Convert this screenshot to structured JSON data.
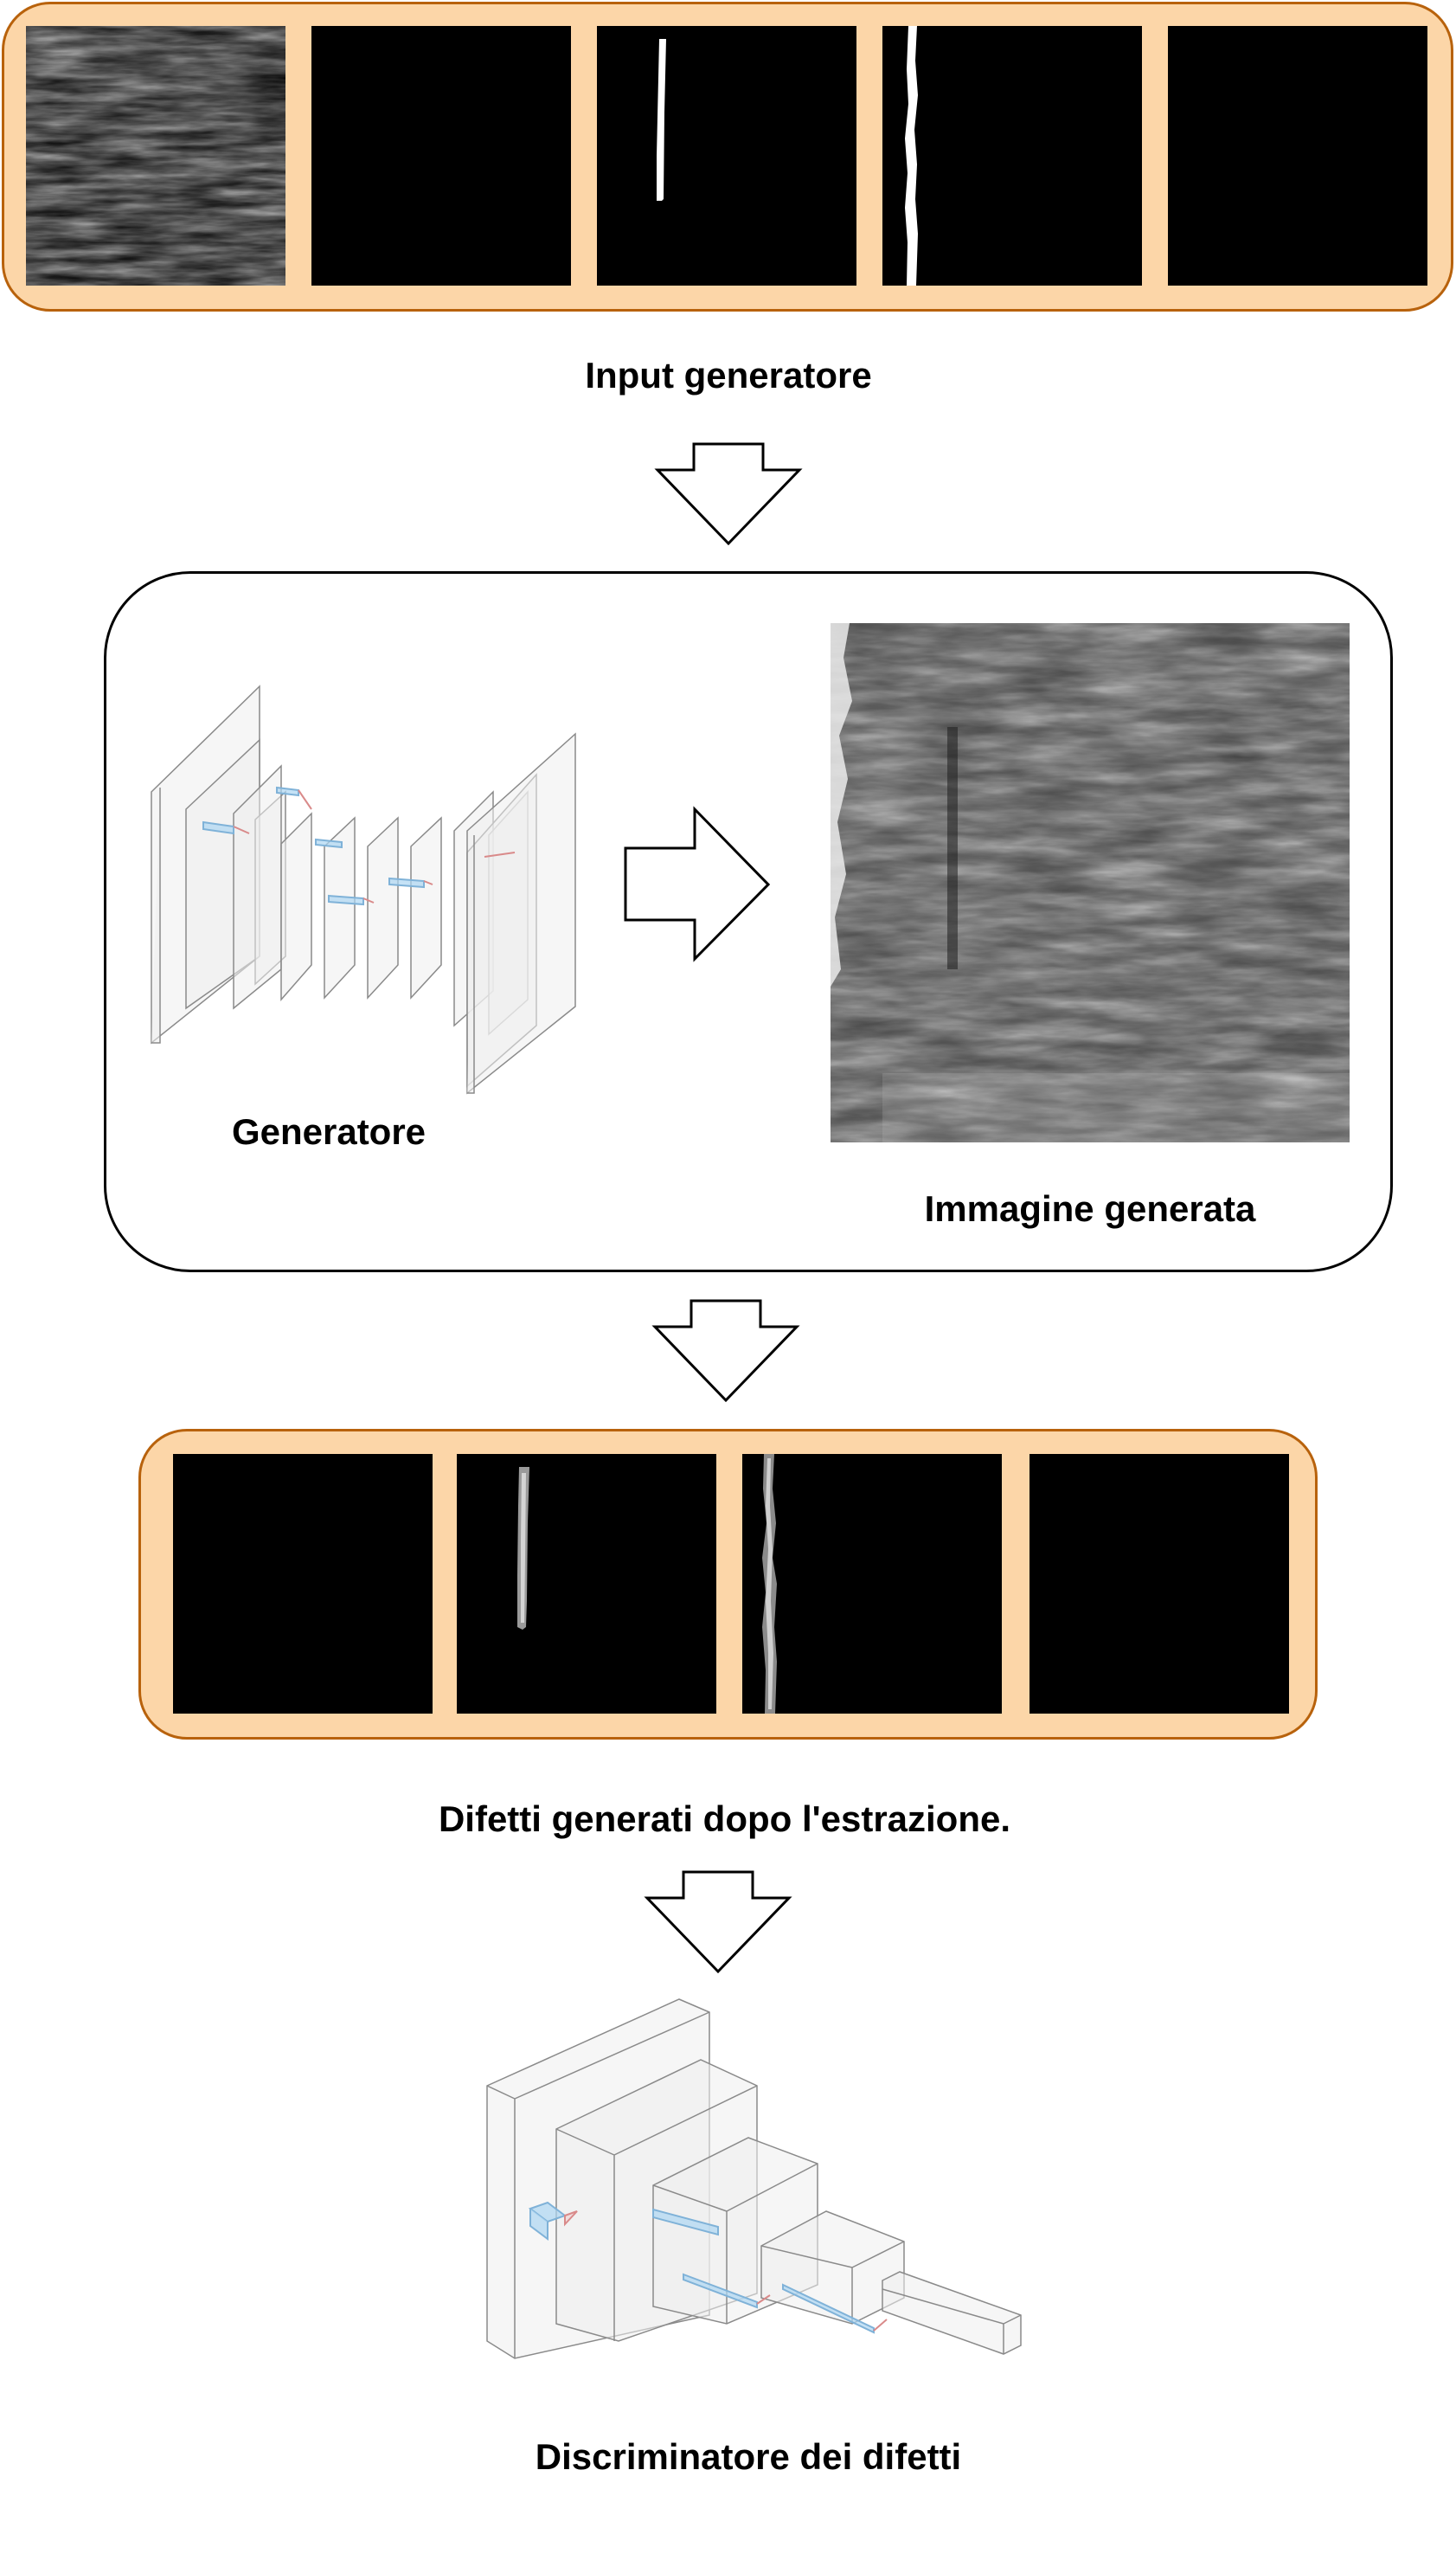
{
  "labels": {
    "input": "Input generatore",
    "generator": "Generatore",
    "generated_image": "Immagine generata",
    "extracted": "Difetti generati dopo l'estrazione.",
    "discriminator": "Discriminatore dei difetti"
  },
  "colors": {
    "panel_fill": "#fcd6a8",
    "panel_border": "#b8620c",
    "tile": "#000000",
    "arrow_stroke": "#000000"
  },
  "input_tiles": [
    {
      "kind": "texture"
    },
    {
      "kind": "blank"
    },
    {
      "kind": "straight-line-mask"
    },
    {
      "kind": "wavy-line-mask"
    },
    {
      "kind": "blank"
    }
  ],
  "output_tiles": [
    {
      "kind": "blank"
    },
    {
      "kind": "short-defect"
    },
    {
      "kind": "long-defect"
    },
    {
      "kind": "blank"
    }
  ],
  "icons": {
    "arrow": "arrow-down-icon",
    "arrow_right": "arrow-right-icon",
    "generator": "generator-network-icon",
    "discriminator": "discriminator-network-icon"
  }
}
